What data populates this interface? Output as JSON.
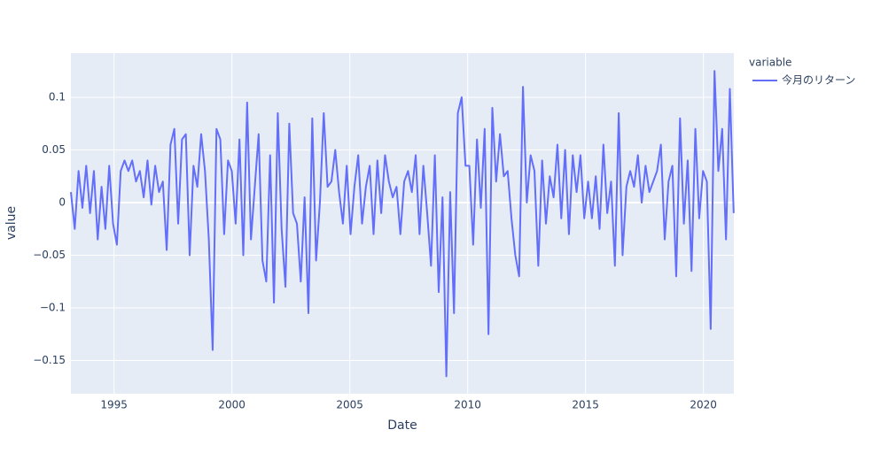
{
  "chart_data": {
    "type": "line",
    "x_label": "Date",
    "y_label": "value",
    "legend_title": "variable",
    "legend_position": "right",
    "grid": true,
    "x": [
      1993.17,
      1993.3325,
      1993.495,
      1993.6575,
      1993.82,
      1993.9825,
      1994.145,
      1994.3075,
      1994.47,
      1994.6325,
      1994.795,
      1994.9575,
      1995.12,
      1995.2825,
      1995.445,
      1995.6075,
      1995.77,
      1995.9325,
      1996.095,
      1996.2575,
      1996.42,
      1996.5825,
      1996.745,
      1996.9075,
      1997.07,
      1997.2325,
      1997.395,
      1997.5575,
      1997.72,
      1997.8825,
      1998.045,
      1998.2075,
      1998.37,
      1998.5325,
      1998.695,
      1998.8575,
      1999.02,
      1999.1825,
      1999.345,
      1999.5075,
      1999.67,
      1999.8325,
      1999.995,
      2000.1575,
      2000.32,
      2000.4825,
      2000.645,
      2000.8075,
      2000.97,
      2001.1325,
      2001.295,
      2001.4575,
      2001.62,
      2001.7825,
      2001.945,
      2002.1075,
      2002.27,
      2002.4325,
      2002.595,
      2002.7575,
      2002.92,
      2003.0825,
      2003.245,
      2003.4075,
      2003.57,
      2003.7325,
      2003.895,
      2004.0575,
      2004.22,
      2004.3825,
      2004.545,
      2004.7075,
      2004.87,
      2005.0325,
      2005.195,
      2005.3575,
      2005.52,
      2005.6825,
      2005.845,
      2006.0075,
      2006.17,
      2006.3325,
      2006.495,
      2006.6575,
      2006.82,
      2006.9825,
      2007.145,
      2007.3075,
      2007.47,
      2007.6325,
      2007.795,
      2007.9575,
      2008.12,
      2008.2825,
      2008.445,
      2008.6075,
      2008.77,
      2008.9325,
      2009.095,
      2009.2575,
      2009.42,
      2009.5825,
      2009.745,
      2009.9075,
      2010.07,
      2010.2325,
      2010.395,
      2010.5575,
      2010.72,
      2010.8825,
      2011.045,
      2011.2075,
      2011.37,
      2011.5325,
      2011.695,
      2011.8575,
      2012.02,
      2012.1825,
      2012.345,
      2012.5075,
      2012.67,
      2012.8325,
      2012.995,
      2013.1575,
      2013.32,
      2013.4825,
      2013.645,
      2013.8075,
      2013.97,
      2014.1325,
      2014.295,
      2014.4575,
      2014.62,
      2014.7825,
      2014.945,
      2015.1075,
      2015.27,
      2015.4325,
      2015.595,
      2015.7575,
      2015.92,
      2016.0825,
      2016.245,
      2016.4075,
      2016.57,
      2016.7325,
      2016.895,
      2017.0575,
      2017.22,
      2017.3825,
      2017.545,
      2017.7075,
      2017.87,
      2018.0325,
      2018.195,
      2018.3575,
      2018.52,
      2018.6825,
      2018.845,
      2019.0075,
      2019.17,
      2019.3325,
      2019.495,
      2019.6575,
      2019.82,
      2019.9825,
      2020.145,
      2020.3075,
      2020.47,
      2020.6325,
      2020.795,
      2020.9575,
      2021.12,
      2021.2825
    ],
    "series": [
      {
        "name": "今月のリターン",
        "color": "#636efa",
        "values": [
          0.01,
          -0.025,
          0.03,
          -0.005,
          0.035,
          -0.01,
          0.03,
          -0.035,
          0.015,
          -0.025,
          0.035,
          -0.02,
          -0.04,
          0.03,
          0.04,
          0.03,
          0.04,
          0.02,
          0.03,
          0.005,
          0.04,
          -0.002,
          0.035,
          0.01,
          0.02,
          -0.045,
          0.055,
          0.07,
          -0.02,
          0.06,
          0.065,
          -0.05,
          0.035,
          0.015,
          0.065,
          0.03,
          -0.035,
          -0.14,
          0.07,
          0.06,
          -0.03,
          0.04,
          0.03,
          -0.02,
          0.06,
          -0.05,
          0.095,
          -0.035,
          0.015,
          0.065,
          -0.055,
          -0.075,
          0.045,
          -0.095,
          0.085,
          -0.025,
          -0.08,
          0.075,
          -0.01,
          -0.02,
          -0.075,
          0.005,
          -0.105,
          0.08,
          -0.055,
          0.0,
          0.085,
          0.015,
          0.02,
          0.05,
          0.01,
          -0.02,
          0.035,
          -0.03,
          0.015,
          0.045,
          -0.02,
          0.015,
          0.035,
          -0.03,
          0.04,
          -0.01,
          0.045,
          0.02,
          0.005,
          0.015,
          -0.03,
          0.02,
          0.03,
          0.01,
          0.045,
          -0.03,
          0.035,
          -0.01,
          -0.06,
          0.045,
          -0.085,
          0.005,
          -0.165,
          0.01,
          -0.105,
          0.085,
          0.1,
          0.035,
          0.035,
          -0.04,
          0.06,
          -0.005,
          0.07,
          -0.125,
          0.09,
          0.02,
          0.065,
          0.025,
          0.03,
          -0.015,
          -0.05,
          -0.07,
          0.11,
          0.0,
          0.045,
          0.03,
          -0.06,
          0.04,
          -0.02,
          0.025,
          0.005,
          0.055,
          -0.015,
          0.05,
          -0.03,
          0.045,
          0.01,
          0.045,
          -0.015,
          0.02,
          -0.015,
          0.025,
          -0.025,
          0.055,
          -0.01,
          0.02,
          -0.06,
          0.085,
          -0.05,
          0.015,
          0.03,
          0.015,
          0.045,
          0.0,
          0.035,
          0.01,
          0.02,
          0.03,
          0.055,
          -0.035,
          0.02,
          0.035,
          -0.07,
          0.08,
          -0.02,
          0.04,
          -0.065,
          0.07,
          -0.015,
          0.03,
          0.02,
          -0.12,
          0.125,
          0.03,
          0.07,
          -0.035,
          0.108,
          -0.01
        ]
      }
    ],
    "xlim": [
      1993.17,
      2021.29
    ],
    "xticks": [
      1995,
      2000,
      2005,
      2010,
      2015,
      2020
    ],
    "ylim": [
      -0.1815,
      0.142
    ],
    "yticks": [
      {
        "value": -0.15,
        "label": "−0.15"
      },
      {
        "value": -0.1,
        "label": "−0.1"
      },
      {
        "value": -0.05,
        "label": "−0.05"
      },
      0,
      0.05,
      0.1
    ]
  }
}
